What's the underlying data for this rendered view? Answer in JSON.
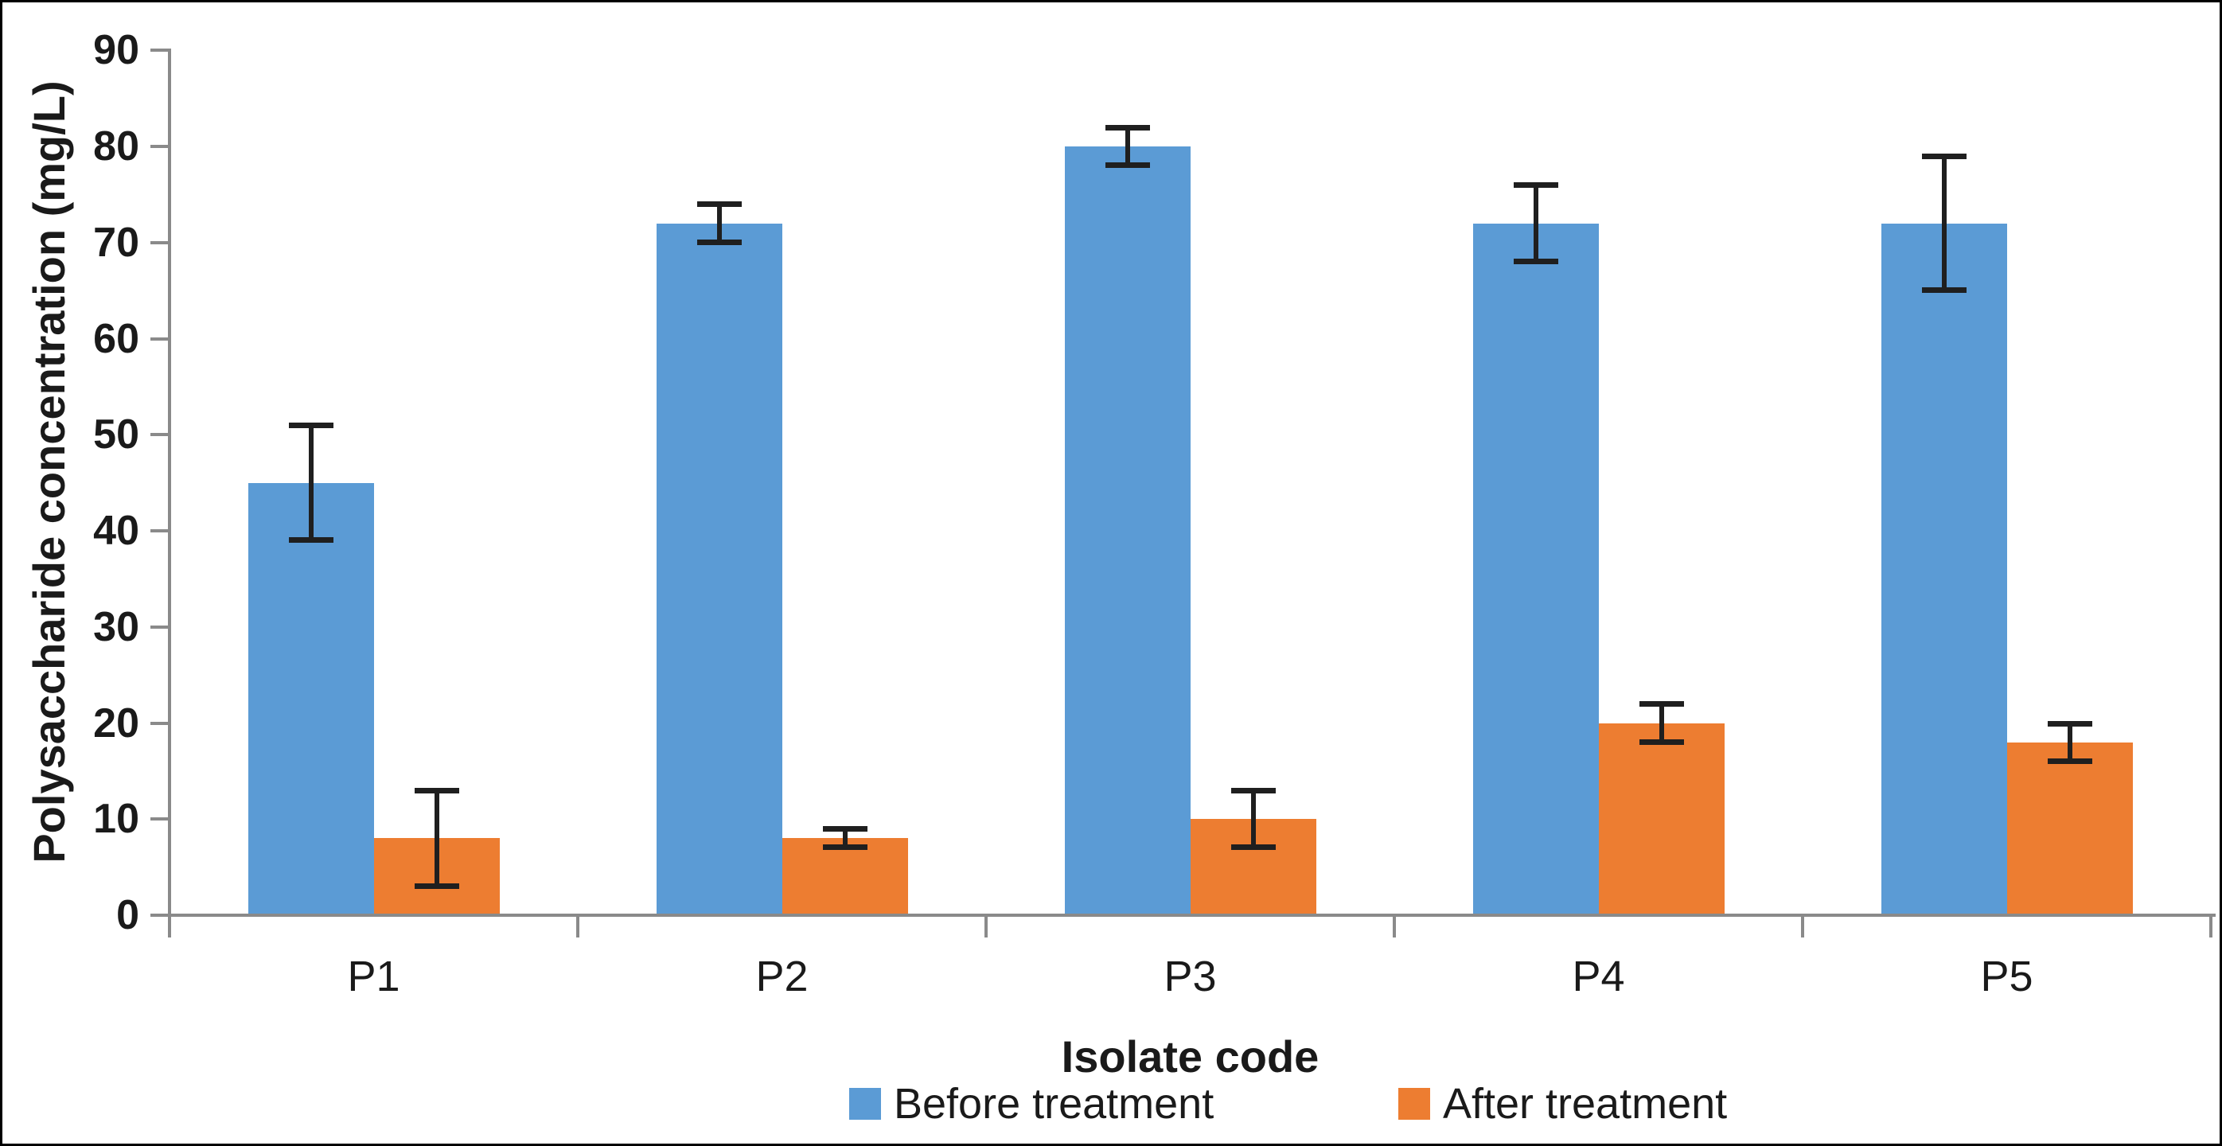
{
  "chart_data": {
    "type": "bar",
    "title": "",
    "categories": [
      "P1",
      "P2",
      "P3",
      "P4",
      "P5"
    ],
    "series": [
      {
        "name": "Before treatment",
        "color": "#5B9BD5",
        "values": [
          45,
          72,
          80,
          72,
          72
        ],
        "errors": [
          6,
          2,
          2,
          4,
          7
        ]
      },
      {
        "name": "After treatment",
        "color": "#ED7D31",
        "values": [
          8,
          8,
          10,
          20,
          18
        ],
        "errors": [
          5,
          1,
          3,
          2,
          2
        ]
      }
    ],
    "xlabel": "Isolate code",
    "ylabel": "Polysaccharide concentration (mg/L)",
    "ylim": [
      0,
      90
    ],
    "ytick_step": 10,
    "yticks": [
      0,
      10,
      20,
      30,
      40,
      50,
      60,
      70,
      80,
      90
    ],
    "grid": false,
    "error_bars": true,
    "legend_position": "bottom"
  },
  "colors": {
    "axis": "#8a8a8a",
    "text": "#1a1a1a",
    "error": "#1f1f1f",
    "background": "#ffffff"
  }
}
